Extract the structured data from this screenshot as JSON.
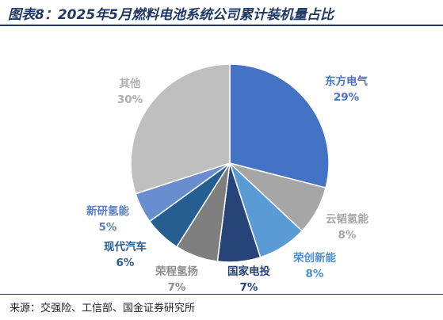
{
  "title": "图表8：2025年5月燃料电池系统公司累计装机量占比",
  "source": "来源：交强险、工信部、国金证券研究所",
  "chart_data": {
    "type": "pie",
    "title": "图表8：2025年5月燃料电池系统公司累计装机量占比",
    "start_angle_deg": 0,
    "direction": "clockwise",
    "slices": [
      {
        "label": "东方电气",
        "value": 29,
        "value_label": "29%",
        "color": "#4472c4",
        "label_color": "#4472c4"
      },
      {
        "label": "云韬氢能",
        "value": 8,
        "value_label": "8%",
        "color": "#a6a6a6",
        "label_color": "#a6a6a6"
      },
      {
        "label": "荣创新能",
        "value": 8,
        "value_label": "8%",
        "color": "#5b9bd5",
        "label_color": "#4a90d9"
      },
      {
        "label": "国家电投",
        "value": 7,
        "value_label": "7%",
        "color": "#264478",
        "label_color": "#264478"
      },
      {
        "label": "荣程氢扬",
        "value": 7,
        "value_label": "7%",
        "color": "#7f7f7f",
        "label_color": "#8c8c8c"
      },
      {
        "label": "现代汽车",
        "value": 6,
        "value_label": "6%",
        "color": "#255e91",
        "label_color": "#255e91"
      },
      {
        "label": "新研氢能",
        "value": 5,
        "value_label": "5%",
        "color": "#698ed0",
        "label_color": "#5b7fc7"
      },
      {
        "label": "其他",
        "value": 30,
        "value_label": "30%",
        "color": "#bfbfbf",
        "label_color": "#b0b0b0"
      }
    ]
  }
}
